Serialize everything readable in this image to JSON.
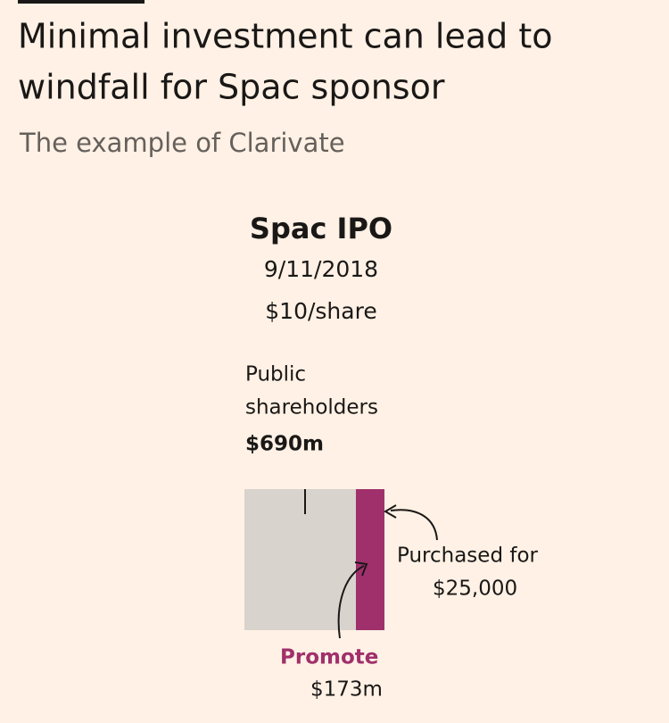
{
  "header": {
    "title": [
      "Minimal investment can lead to",
      "windfall for Spac sponsor"
    ],
    "subtitle": "The example of Clarivate"
  },
  "event": {
    "title": "Spac IPO",
    "date": "9/11/2018",
    "price": "$10/share"
  },
  "public": {
    "label": [
      "Public",
      "shareholders"
    ],
    "amount": "$690m"
  },
  "purchase": {
    "label": [
      "Purchased for",
      "$25,000"
    ]
  },
  "promote": {
    "label": "Promote",
    "amount": "$173m"
  }
}
